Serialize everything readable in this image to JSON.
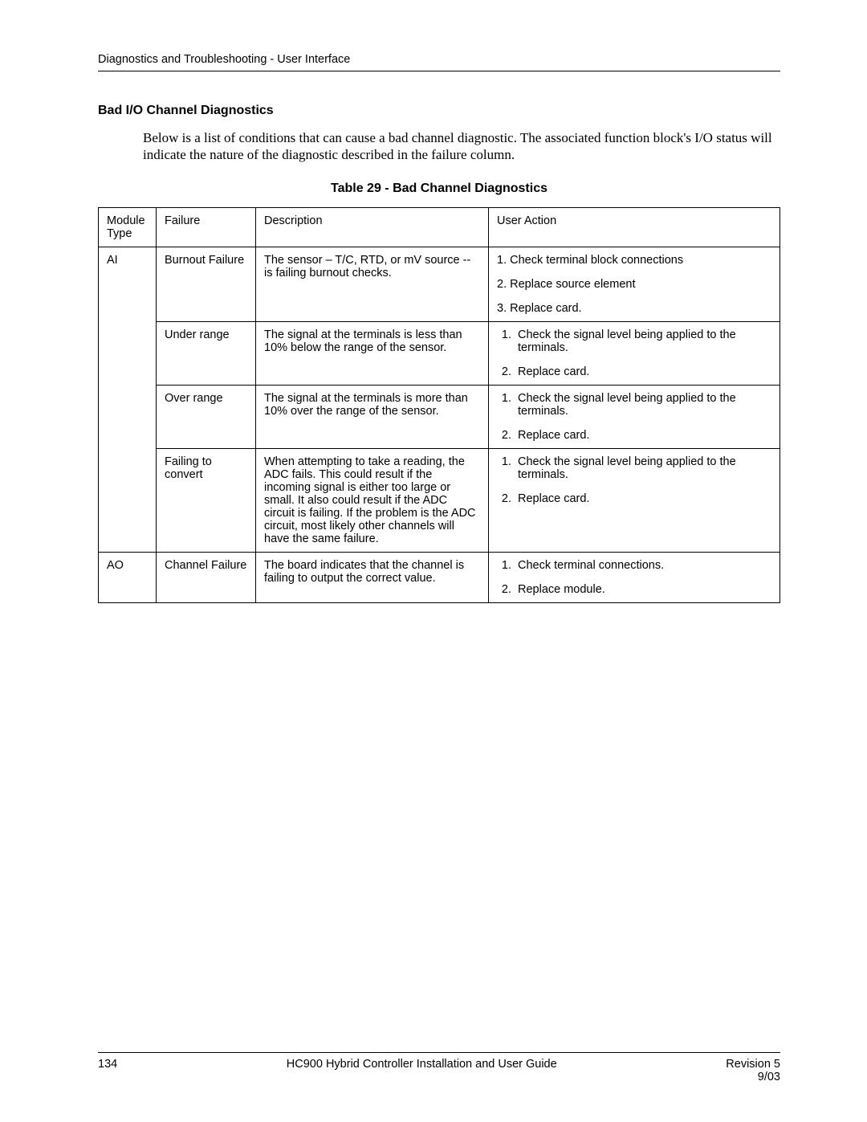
{
  "header": {
    "running_title": "Diagnostics and Troubleshooting - User Interface"
  },
  "section": {
    "title": "Bad I/O Channel Diagnostics",
    "intro": "Below is a list of conditions that can cause a bad channel diagnostic. The associated function block's I/O status will indicate the nature of the diagnostic described in the failure column.",
    "table_caption": "Table 29 - Bad Channel Diagnostics"
  },
  "table": {
    "columns": [
      "Module Type",
      "Failure",
      "Description",
      "User Action"
    ],
    "rows": [
      {
        "module": "AI",
        "failure": "Burnout Failure",
        "description": "The sensor – T/C, RTD, or mV source -- is failing burnout checks.",
        "actions": [
          "Check terminal block connections",
          "Replace source element",
          "Replace card."
        ],
        "action_style": "inline"
      },
      {
        "module": "",
        "failure": "Under range",
        "description": "The signal at the terminals is less than 10% below the range of the sensor.",
        "actions": [
          "Check the signal level being applied to the terminals.",
          "Replace card."
        ],
        "action_style": "ol"
      },
      {
        "module": "",
        "failure": "Over range",
        "description": "The signal at the terminals is more than 10% over the range of the sensor.",
        "actions": [
          "Check the signal level being applied to the terminals.",
          "Replace card."
        ],
        "action_style": "ol"
      },
      {
        "module": "",
        "failure": "Failing to convert",
        "description": "When attempting to take a reading, the ADC fails. This could result if the incoming signal is either too large or small. It also could result if the ADC circuit is failing. If the problem is the ADC circuit, most likely other channels will have the same failure.",
        "actions": [
          "Check the signal level being applied to the terminals.",
          "Replace card."
        ],
        "action_style": "ol"
      },
      {
        "module": "AO",
        "failure": "Channel Failure",
        "description": "The board indicates that the channel is failing to output the correct value.",
        "actions": [
          "Check terminal connections.",
          "Replace module."
        ],
        "action_style": "ol"
      }
    ]
  },
  "footer": {
    "page_number": "134",
    "doc_title": "HC900 Hybrid Controller Installation and User Guide",
    "revision": "Revision 5",
    "date": "9/03"
  },
  "style": {
    "body_font": "Arial",
    "serif_font": "Times New Roman",
    "text_color": "#000000",
    "background_color": "#ffffff",
    "border_color": "#000000",
    "header_fontsize": 14.5,
    "section_title_fontsize": 16,
    "intro_fontsize": 17,
    "table_fontsize": 14.5,
    "footer_fontsize": 14.5
  }
}
